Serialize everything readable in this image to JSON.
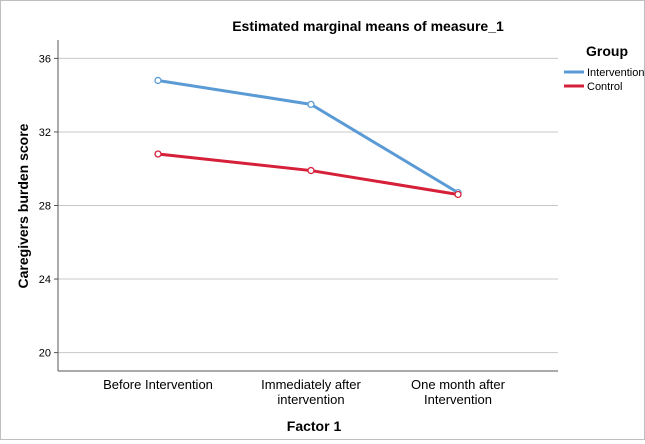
{
  "chart_data": {
    "type": "line",
    "title": "Estimated marginal means of measure_1",
    "xlabel": "Factor 1",
    "ylabel": "Caregivers burden score",
    "categories": [
      [
        "Before Intervention"
      ],
      [
        "Immediately after",
        "intervention"
      ],
      [
        "One month after",
        "Intervention"
      ]
    ],
    "ylim": [
      19,
      37
    ],
    "yticks": [
      20,
      24,
      28,
      32,
      36
    ],
    "grid": true,
    "legend": {
      "title": "Group",
      "placement": "top-right"
    },
    "series": [
      {
        "name": "Intervention",
        "color": "#5b9bd5",
        "values": [
          34.8,
          33.5,
          28.7
        ]
      },
      {
        "name": "Control",
        "color": "#d6203a",
        "values": [
          30.8,
          29.9,
          28.6
        ]
      }
    ]
  }
}
